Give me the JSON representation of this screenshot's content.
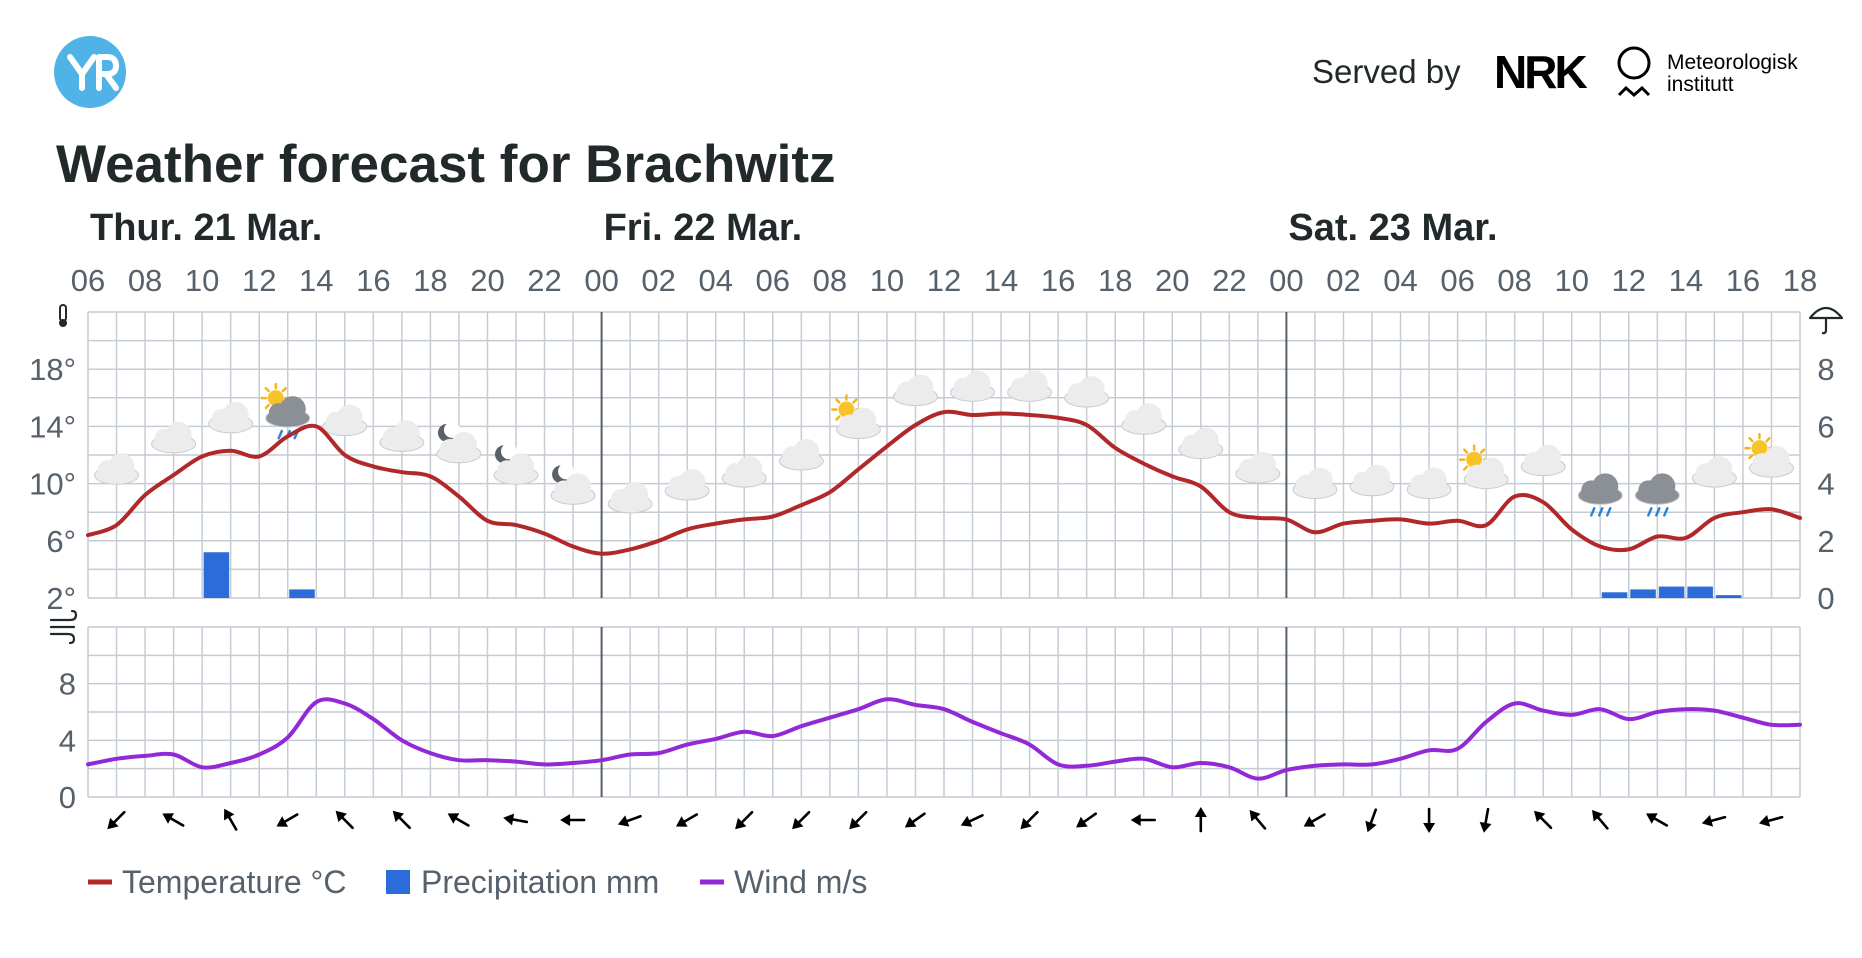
{
  "header": {
    "served_by": "Served by",
    "nrk_logo_text": "NRK",
    "met_line1": "Meteorologisk",
    "met_line2": "institutt",
    "title": "Weather forecast for Brachwitz",
    "brand_color": "#4fb3e8"
  },
  "chart_data": {
    "type": "line",
    "day_labels": [
      "Thur. 21 Mar.",
      "Fri. 22 Mar.",
      "Sat. 23 Mar."
    ],
    "hour_ticks": [
      "06",
      "08",
      "10",
      "12",
      "14",
      "16",
      "18",
      "20",
      "22",
      "00",
      "02",
      "04",
      "06",
      "08",
      "10",
      "12",
      "14",
      "16",
      "18",
      "20",
      "22",
      "00",
      "02",
      "04",
      "06",
      "08",
      "10",
      "12",
      "14",
      "16",
      "18"
    ],
    "temperature_axis": {
      "labels": [
        "18°",
        "14°",
        "10°",
        "6°",
        "2°"
      ],
      "values": [
        18,
        14,
        10,
        6,
        2
      ],
      "range": [
        2,
        22
      ]
    },
    "precip_axis": {
      "labels": [
        "8",
        "6",
        "4",
        "2",
        "0"
      ],
      "values": [
        8,
        6,
        4,
        2,
        0
      ],
      "range": [
        0,
        10
      ]
    },
    "wind_axis": {
      "labels": [
        "8",
        "4",
        "0"
      ],
      "values": [
        8,
        4,
        0
      ],
      "range": [
        0,
        12
      ]
    },
    "x_range_hours": [
      6,
      66
    ],
    "series": [
      {
        "name": "Temperature °C",
        "color": "#b1282a",
        "x": [
          6,
          7,
          8,
          9,
          10,
          11,
          12,
          13,
          14,
          15,
          16,
          17,
          18,
          19,
          20,
          21,
          22,
          23,
          24,
          25,
          26,
          27,
          28,
          29,
          30,
          31,
          32,
          33,
          34,
          35,
          36,
          37,
          38,
          39,
          40,
          41,
          42,
          43,
          44,
          45,
          46,
          47,
          48,
          49,
          50,
          51,
          52,
          53,
          54,
          55,
          56,
          57,
          58,
          59,
          60,
          61,
          62,
          63,
          64,
          65,
          66
        ],
        "y": [
          6.4,
          7.1,
          9.2,
          10.6,
          11.9,
          12.3,
          11.9,
          13.3,
          14.0,
          12.0,
          11.2,
          10.8,
          10.5,
          9.1,
          7.4,
          7.1,
          6.5,
          5.6,
          5.1,
          5.4,
          6.0,
          6.8,
          7.2,
          7.5,
          7.7,
          8.5,
          9.4,
          11.0,
          12.6,
          14.1,
          15.0,
          14.8,
          14.9,
          14.8,
          14.6,
          14.1,
          12.5,
          11.4,
          10.5,
          9.8,
          8.0,
          7.6,
          7.5,
          6.6,
          7.2,
          7.4,
          7.5,
          7.2,
          7.4,
          7.1,
          9.1,
          8.7,
          6.8,
          5.6,
          5.4,
          6.3,
          6.2,
          7.6,
          8.0,
          8.2,
          7.6
        ]
      },
      {
        "name": "Precipitation mm",
        "color": "#2b6cd9",
        "x": [
          10,
          13,
          59,
          60,
          61,
          62,
          63
        ],
        "y": [
          1.6,
          0.3,
          0.2,
          0.3,
          0.4,
          0.4,
          0.1
        ]
      },
      {
        "name": "Wind m/s",
        "color": "#9228d6",
        "x": [
          6,
          7,
          8,
          9,
          10,
          11,
          12,
          13,
          14,
          15,
          16,
          17,
          18,
          19,
          20,
          21,
          22,
          23,
          24,
          25,
          26,
          27,
          28,
          29,
          30,
          31,
          32,
          33,
          34,
          35,
          36,
          37,
          38,
          39,
          40,
          41,
          42,
          43,
          44,
          45,
          46,
          47,
          48,
          49,
          50,
          51,
          52,
          53,
          54,
          55,
          56,
          57,
          58,
          59,
          60,
          61,
          62,
          63,
          64,
          65,
          66
        ],
        "y": [
          2.3,
          2.7,
          2.9,
          3.0,
          2.1,
          2.4,
          3.0,
          4.2,
          6.7,
          6.6,
          5.5,
          4.0,
          3.1,
          2.6,
          2.6,
          2.5,
          2.3,
          2.4,
          2.6,
          3.0,
          3.1,
          3.7,
          4.1,
          4.6,
          4.3,
          5.0,
          5.6,
          6.2,
          6.9,
          6.5,
          6.2,
          5.3,
          4.5,
          3.7,
          2.3,
          2.2,
          2.5,
          2.7,
          2.1,
          2.4,
          2.1,
          1.3,
          1.9,
          2.2,
          2.3,
          2.3,
          2.7,
          3.3,
          3.4,
          5.3,
          6.6,
          6.1,
          5.8,
          6.2,
          5.5,
          6.0,
          6.2,
          6.1,
          5.6,
          5.1,
          5.1
        ]
      }
    ],
    "symbols": [
      {
        "x": 7,
        "t": "cloud",
        "y": 11.0
      },
      {
        "x": 9,
        "t": "cloud",
        "y": 13.2
      },
      {
        "x": 11,
        "t": "cloud",
        "y": 14.6
      },
      {
        "x": 13,
        "t": "sun-cloud-rain",
        "y": 15.0
      },
      {
        "x": 15,
        "t": "cloud",
        "y": 14.4
      },
      {
        "x": 17,
        "t": "cloud",
        "y": 13.3
      },
      {
        "x": 19,
        "t": "moon-cloud",
        "y": 12.5
      },
      {
        "x": 21,
        "t": "moon-cloud",
        "y": 11.0
      },
      {
        "x": 23,
        "t": "moon-cloud",
        "y": 9.6
      },
      {
        "x": 25,
        "t": "cloud",
        "y": 9.0
      },
      {
        "x": 27,
        "t": "cloud",
        "y": 9.9
      },
      {
        "x": 29,
        "t": "cloud",
        "y": 10.8
      },
      {
        "x": 31,
        "t": "cloud",
        "y": 12.0
      },
      {
        "x": 33,
        "t": "sun-cloud",
        "y": 14.2
      },
      {
        "x": 35,
        "t": "cloud",
        "y": 16.5
      },
      {
        "x": 37,
        "t": "cloud",
        "y": 16.8
      },
      {
        "x": 39,
        "t": "cloud",
        "y": 16.8
      },
      {
        "x": 41,
        "t": "cloud",
        "y": 16.4
      },
      {
        "x": 43,
        "t": "cloud",
        "y": 14.5
      },
      {
        "x": 45,
        "t": "cloud",
        "y": 12.8
      },
      {
        "x": 47,
        "t": "cloud",
        "y": 11.1
      },
      {
        "x": 49,
        "t": "cloud",
        "y": 10.0
      },
      {
        "x": 51,
        "t": "cloud",
        "y": 10.2
      },
      {
        "x": 53,
        "t": "cloud",
        "y": 10.0
      },
      {
        "x": 55,
        "t": "sun-cloud",
        "y": 10.7
      },
      {
        "x": 57,
        "t": "cloud",
        "y": 11.6
      },
      {
        "x": 59,
        "t": "cloud-rain",
        "y": 9.6
      },
      {
        "x": 61,
        "t": "cloud-rain",
        "y": 9.6
      },
      {
        "x": 63,
        "t": "cloud",
        "y": 10.8
      },
      {
        "x": 65,
        "t": "sun-cloud",
        "y": 11.5
      }
    ],
    "wind_direction_deg": [
      225,
      300,
      330,
      240,
      315,
      315,
      300,
      280,
      270,
      250,
      240,
      225,
      225,
      225,
      235,
      245,
      225,
      235,
      270,
      0,
      320,
      240,
      200,
      180,
      190,
      315,
      320,
      300,
      255,
      255
    ],
    "legend": [
      "Temperature °C",
      "Precipitation mm",
      "Wind m/s"
    ],
    "legend_placement": "bottom-left",
    "grid": true,
    "colors": {
      "grid": "#c5ccd4",
      "day_separator": "#56606a",
      "text": "#21292b",
      "axis_text": "#56616b"
    }
  }
}
